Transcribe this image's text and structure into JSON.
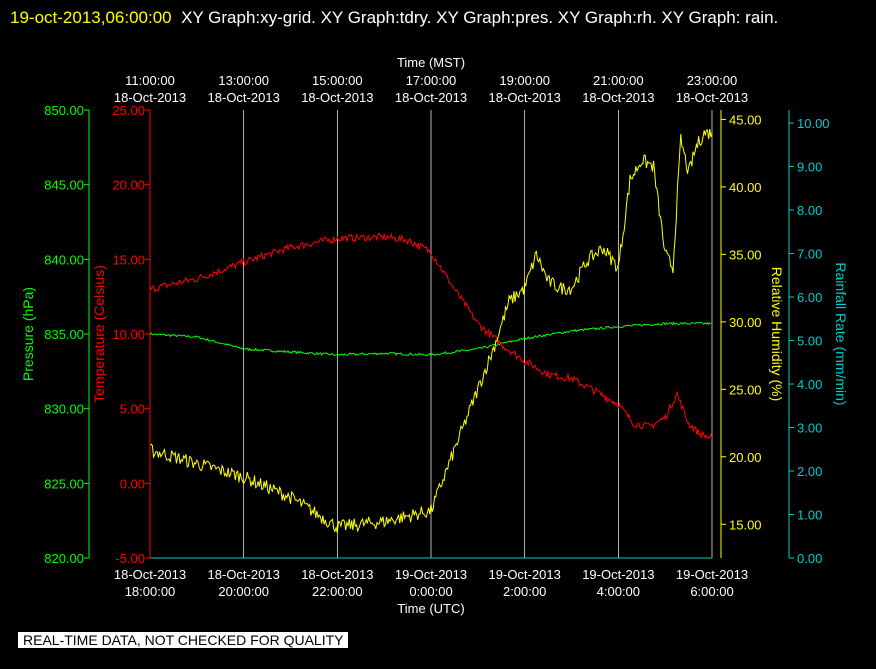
{
  "header": {
    "timestamp": "19-oct-2013,06:00:00",
    "graphs_text": "XY Graph:xy-grid.  XY Graph:tdry.  XY Graph:pres.  XY Graph:rh.  XY Graph: rain."
  },
  "footer": {
    "disclaimer": "REAL-TIME DATA, NOT CHECKED FOR QUALITY"
  },
  "colors": {
    "background": "#000000",
    "grid": "#ffffff",
    "pressure": "#00ff00",
    "temperature": "#ff0000",
    "humidity": "#ffff00",
    "rain": "#00cccc"
  },
  "chart_data": {
    "type": "line",
    "x_top": {
      "label": "Time (MST)",
      "ticks": [
        {
          "time": "11:00:00",
          "date": "18-Oct-2013"
        },
        {
          "time": "13:00:00",
          "date": "18-Oct-2013"
        },
        {
          "time": "15:00:00",
          "date": "18-Oct-2013"
        },
        {
          "time": "17:00:00",
          "date": "18-Oct-2013"
        },
        {
          "time": "19:00:00",
          "date": "18-Oct-2013"
        },
        {
          "time": "21:00:00",
          "date": "18-Oct-2013"
        },
        {
          "time": "23:00:00",
          "date": "18-Oct-2013"
        }
      ]
    },
    "x_bottom": {
      "label": "Time (UTC)",
      "ticks": [
        {
          "date": "18-Oct-2013",
          "time": "18:00:00"
        },
        {
          "date": "18-Oct-2013",
          "time": "20:00:00"
        },
        {
          "date": "18-Oct-2013",
          "time": "22:00:00"
        },
        {
          "date": "19-Oct-2013",
          "time": "0:00:00"
        },
        {
          "date": "19-Oct-2013",
          "time": "2:00:00"
        },
        {
          "date": "19-Oct-2013",
          "time": "4:00:00"
        },
        {
          "date": "19-Oct-2013",
          "time": "6:00:00"
        }
      ]
    },
    "x_range_utc": [
      "2013-10-18 18:00:00",
      "2013-10-19 06:00:00"
    ],
    "axes": {
      "pressure": {
        "label": "Pressure (hPa)",
        "range": [
          820,
          850
        ],
        "ticks": [
          "820.00",
          "825.00",
          "830.00",
          "835.00",
          "840.00",
          "845.00",
          "850.00"
        ]
      },
      "temperature": {
        "label": "Temperature (Celsius)",
        "range": [
          -5,
          25
        ],
        "ticks": [
          "-5.00",
          "0.00",
          "5.00",
          "10.00",
          "15.00",
          "20.00",
          "25.00"
        ]
      },
      "humidity": {
        "label": "Relative Humidity (%)",
        "range": [
          12.5,
          45.7
        ],
        "ticks": [
          "15.00",
          "20.00",
          "25.00",
          "30.00",
          "35.00",
          "40.00",
          "45.00"
        ]
      },
      "rain": {
        "label": "Rainfall Rate (mm/min)",
        "range": [
          0,
          10.3
        ],
        "ticks": [
          "0.00",
          "1.00",
          "2.00",
          "3.00",
          "4.00",
          "5.00",
          "6.00",
          "7.00",
          "8.00",
          "9.00",
          "10.00"
        ]
      }
    },
    "grid": "vertical",
    "series": [
      {
        "key": "pressure",
        "axis": "pressure",
        "noise": 0.08,
        "x": [
          "2013-10-18 18:00",
          "2013-10-18 19:00",
          "2013-10-18 20:00",
          "2013-10-18 21:00",
          "2013-10-18 22:00",
          "2013-10-18 23:00",
          "2013-10-19 00:00",
          "2013-10-19 01:00",
          "2013-10-19 02:00",
          "2013-10-19 03:00",
          "2013-10-19 04:00",
          "2013-10-19 05:00",
          "2013-10-19 06:00"
        ],
        "y": [
          835.0,
          834.8,
          834.0,
          833.8,
          833.6,
          833.7,
          833.6,
          834.0,
          834.7,
          835.2,
          835.5,
          835.7,
          835.7
        ]
      },
      {
        "key": "temperature",
        "axis": "temperature",
        "noise": 0.25,
        "x": [
          "2013-10-18 18:00",
          "2013-10-18 19:00",
          "2013-10-18 20:00",
          "2013-10-18 21:00",
          "2013-10-18 22:00",
          "2013-10-18 23:00",
          "2013-10-18 23:30",
          "2013-10-19 00:00",
          "2013-10-19 00:30",
          "2013-10-19 01:00",
          "2013-10-19 01:30",
          "2013-10-19 02:00",
          "2013-10-19 02:30",
          "2013-10-19 03:00",
          "2013-10-19 03:30",
          "2013-10-19 04:00",
          "2013-10-19 04:20",
          "2013-10-19 04:40",
          "2013-10-19 05:00",
          "2013-10-19 05:15",
          "2013-10-19 05:30",
          "2013-10-19 05:45",
          "2013-10-19 06:00"
        ],
        "y": [
          13.0,
          13.7,
          14.8,
          15.8,
          16.4,
          16.5,
          16.3,
          15.5,
          13.0,
          10.7,
          9.3,
          8.2,
          7.3,
          7.0,
          6.2,
          5.3,
          4.0,
          3.8,
          4.4,
          6.0,
          4.0,
          3.3,
          3.0
        ]
      },
      {
        "key": "humidity",
        "axis": "humidity",
        "noise": 0.5,
        "x": [
          "2013-10-18 18:00",
          "2013-10-18 19:00",
          "2013-10-18 20:00",
          "2013-10-18 21:00",
          "2013-10-18 22:00",
          "2013-10-18 23:00",
          "2013-10-19 00:00",
          "2013-10-19 00:20",
          "2013-10-19 00:40",
          "2013-10-19 01:00",
          "2013-10-19 01:20",
          "2013-10-19 01:40",
          "2013-10-19 02:00",
          "2013-10-19 02:15",
          "2013-10-19 02:30",
          "2013-10-19 02:45",
          "2013-10-19 03:00",
          "2013-10-19 03:20",
          "2013-10-19 03:40",
          "2013-10-19 04:00",
          "2013-10-19 04:15",
          "2013-10-19 04:30",
          "2013-10-19 04:45",
          "2013-10-19 05:00",
          "2013-10-19 05:10",
          "2013-10-19 05:20",
          "2013-10-19 05:30",
          "2013-10-19 05:40",
          "2013-10-19 05:50",
          "2013-10-19 06:00"
        ],
        "y": [
          20.5,
          19.5,
          18.5,
          17.0,
          14.8,
          15.2,
          16.0,
          19.0,
          22.0,
          25.0,
          28.0,
          31.5,
          32.5,
          35.0,
          33.0,
          32.5,
          32.5,
          34.5,
          35.5,
          34.0,
          40.5,
          42.0,
          41.5,
          35.0,
          34.0,
          43.5,
          41.0,
          43.0,
          44.0,
          44.0
        ]
      },
      {
        "key": "rain",
        "axis": "rain",
        "noise": 0,
        "x": [
          "2013-10-18 18:00",
          "2013-10-19 06:00"
        ],
        "y": [
          0.0,
          0.0
        ]
      }
    ]
  }
}
